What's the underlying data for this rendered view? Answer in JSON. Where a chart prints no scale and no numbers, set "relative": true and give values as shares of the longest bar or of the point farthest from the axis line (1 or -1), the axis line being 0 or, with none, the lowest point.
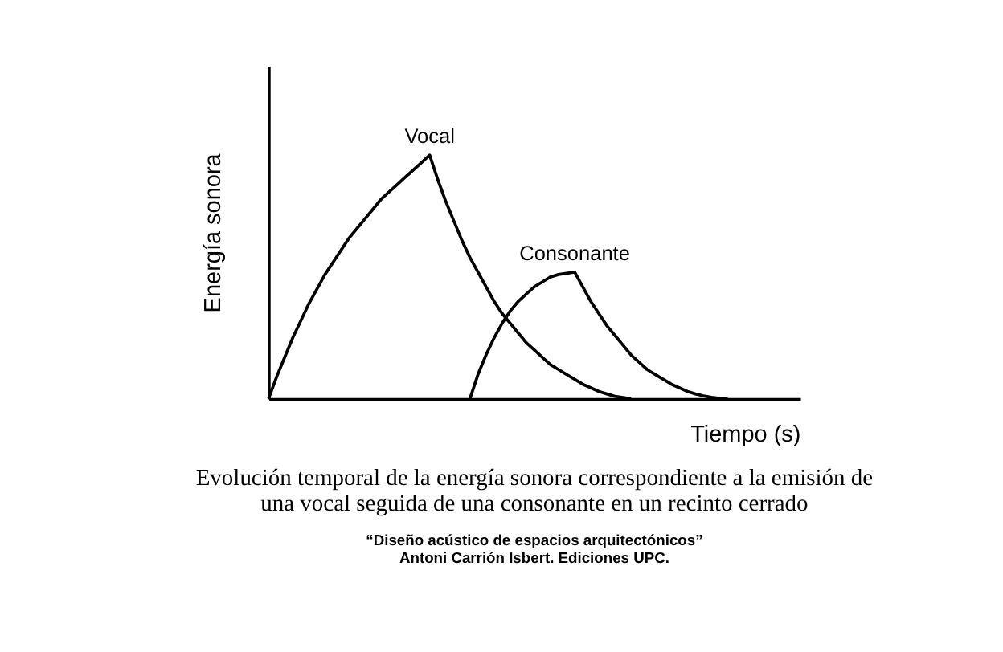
{
  "chart_data": {
    "type": "line",
    "relative": true,
    "xlabel": "Tiempo (s)",
    "ylabel": "Energía sonora",
    "tick_labels": false,
    "legend": false,
    "grid": false,
    "marker": "none",
    "line_style": "solid",
    "categories": [
      null,
      null,
      null,
      null,
      null,
      null,
      null,
      null,
      null,
      null,
      null,
      null,
      null,
      null,
      null,
      null,
      null,
      null,
      null,
      null,
      null,
      null,
      null,
      null,
      null,
      null,
      null,
      null,
      null,
      null,
      null,
      null,
      null,
      null,
      null,
      null,
      null,
      null,
      null,
      null,
      null,
      null,
      null,
      null,
      null,
      null,
      null,
      null,
      null,
      null,
      null,
      null,
      null,
      null,
      null,
      null,
      null,
      null,
      null,
      null,
      null,
      null,
      null,
      null,
      null,
      null,
      null
    ],
    "series": [
      {
        "name": "Vocal",
        "color": "#000000",
        "values": [
          0,
          0.09,
          0.17,
          0.25,
          0.32,
          0.39,
          0.45,
          0.51,
          0.56,
          0.61,
          0.66,
          0.7,
          0.74,
          0.78,
          0.82,
          0.85,
          0.88,
          0.91,
          0.94,
          0.97,
          1,
          0.9,
          0.81,
          0.73,
          0.65,
          0.58,
          0.52,
          0.46,
          0.4,
          0.35,
          0.31,
          0.27,
          0.23,
          0.2,
          0.17,
          0.14,
          0.12,
          0.1,
          0.08,
          0.06,
          0.045,
          0.03,
          0.02,
          0.01,
          0.005,
          0,
          null,
          null,
          null,
          null,
          null,
          null,
          null,
          null,
          null,
          null,
          null,
          null,
          null,
          null,
          null,
          null,
          null,
          null,
          null,
          null,
          null
        ]
      },
      {
        "name": "Consonante",
        "color": "#000000",
        "values": [
          null,
          null,
          null,
          null,
          null,
          null,
          null,
          null,
          null,
          null,
          null,
          null,
          null,
          null,
          null,
          null,
          null,
          null,
          null,
          null,
          null,
          null,
          null,
          null,
          null,
          0,
          0.1,
          0.18,
          0.25,
          0.31,
          0.36,
          0.4,
          0.43,
          0.46,
          0.48,
          0.5,
          0.51,
          0.515,
          0.52,
          0.46,
          0.4,
          0.35,
          0.3,
          0.26,
          0.22,
          0.18,
          0.15,
          0.12,
          0.1,
          0.08,
          0.06,
          0.045,
          0.03,
          0.02,
          0.012,
          0.006,
          0.002,
          0,
          null,
          null,
          null,
          null,
          null,
          null,
          null,
          null,
          null
        ]
      }
    ],
    "annotations": [
      "Evolución temporal de la energía sonora correspondiente a la emisión de\nuna vocal seguida de una consonante en un recinto cerrado",
      "“Diseño acústico de espacios arquitectónicos”\nAntoni Carrión Isbert. Ediciones UPC."
    ]
  }
}
